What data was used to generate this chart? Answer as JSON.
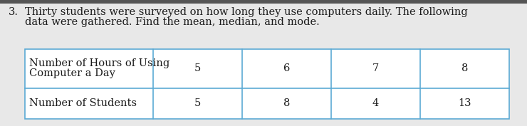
{
  "question_number": "3.",
  "question_text_line1": "Thirty students were surveyed on how long they use computers daily. The following",
  "question_text_line2": "data were gathered. Find the mean, median, and mode.",
  "row1_label_line1": "Number of Hours of Using",
  "row1_label_line2": "Computer a Day",
  "row2_label": "Number of Students",
  "col_headers": [
    "5",
    "6",
    "7",
    "8"
  ],
  "row2_values": [
    "5",
    "8",
    "4",
    "13"
  ],
  "bg_color": "#e8e8e8",
  "table_bg": "#ffffff",
  "table_border_color": "#5baad4",
  "text_color": "#1a1a1a",
  "font_size_question": 10.5,
  "font_size_table": 10.5,
  "top_bar_color": "#555555"
}
